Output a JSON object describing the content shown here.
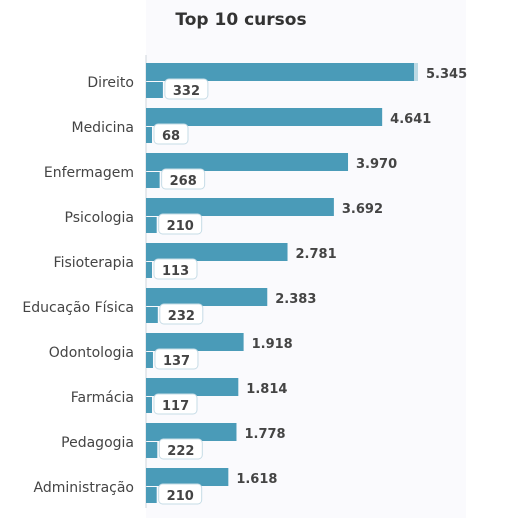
{
  "chart_data": {
    "type": "bar",
    "orientation": "horizontal",
    "title": "Top 10 cursos",
    "categories": [
      "Direito",
      "Medicina",
      "Enfermagem",
      "Psicologia",
      "Fisioterapia",
      "Educação Física",
      "Odontologia",
      "Farmácia",
      "Pedagogia",
      "Administração"
    ],
    "series": [
      {
        "values": [
          5345,
          4641,
          3970,
          3692,
          2781,
          2383,
          1918,
          1814,
          1778,
          1618
        ],
        "labels": [
          "5.345",
          "4.641",
          "3.970",
          "3.692",
          "2.781",
          "2.383",
          "1.918",
          "1.814",
          "1.778",
          "1.618"
        ]
      },
      {
        "values": [
          332,
          68,
          268,
          210,
          113,
          232,
          137,
          117,
          222,
          210
        ],
        "labels": [
          "332",
          "68",
          "268",
          "210",
          "113",
          "232",
          "137",
          "117",
          "222",
          "210"
        ]
      }
    ],
    "xlim": [
      0,
      5345
    ],
    "grid": false,
    "legend": "none",
    "colors": {
      "bar": "#4a9bb8",
      "bar_end_highlight": "#bcd9e4",
      "label_box": "#ffffff",
      "label_box_border": "#c6dce6",
      "plot_background": "#fafafd",
      "axis_line": "#cfd6dc",
      "text": "#444444",
      "title": "#333333"
    }
  }
}
